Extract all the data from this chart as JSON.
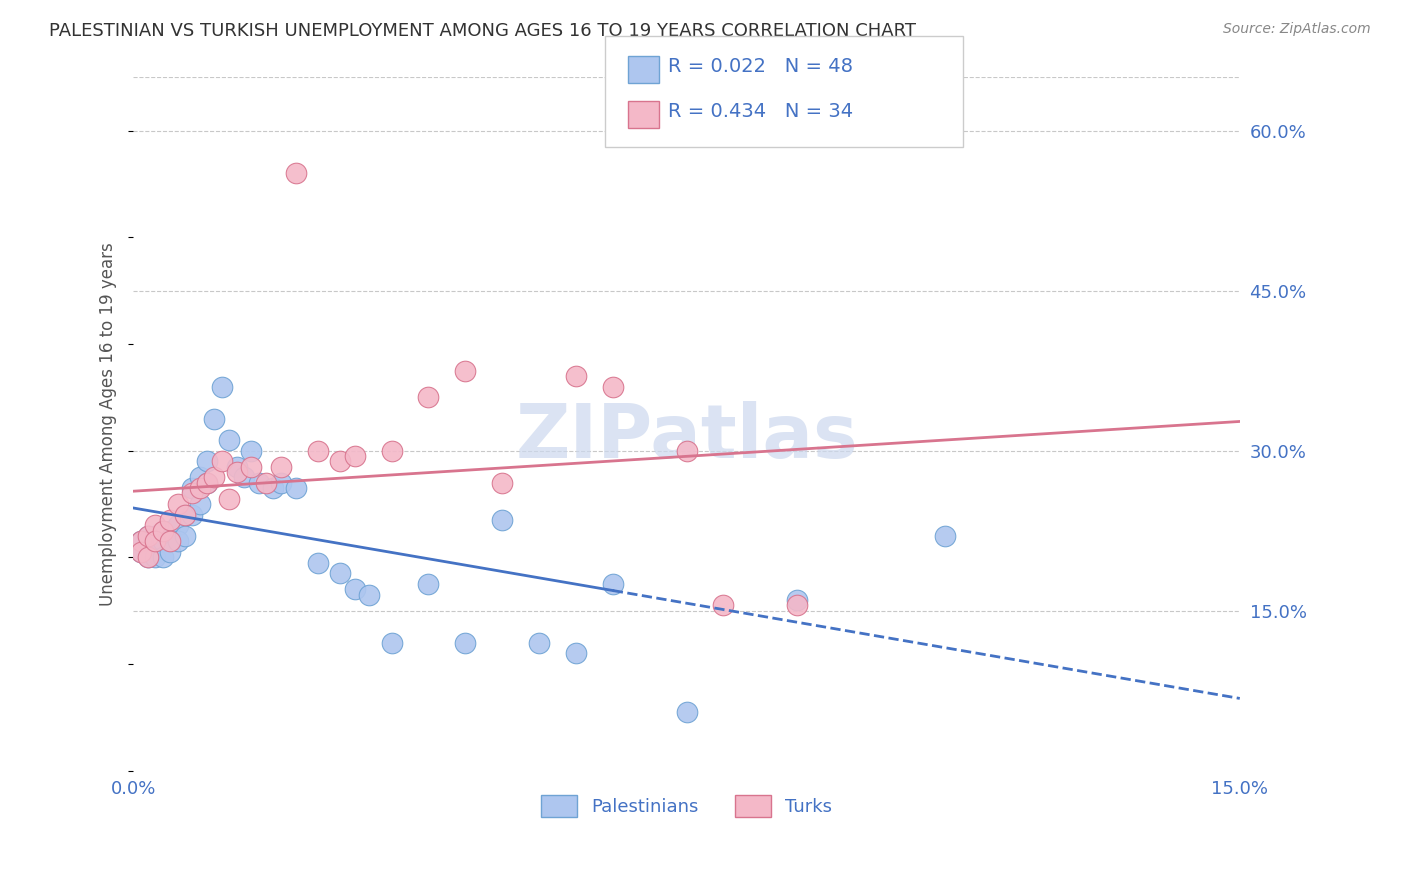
{
  "title": "PALESTINIAN VS TURKISH UNEMPLOYMENT AMONG AGES 16 TO 19 YEARS CORRELATION CHART",
  "source": "Source: ZipAtlas.com",
  "ylabel": "Unemployment Among Ages 16 to 19 years",
  "xmin": 0.0,
  "xmax": 0.15,
  "ymin": 0.0,
  "ymax": 0.65,
  "yticks": [
    0.15,
    0.3,
    0.45,
    0.6
  ],
  "ytick_labels": [
    "15.0%",
    "30.0%",
    "45.0%",
    "60.0%"
  ],
  "xticks": [
    0.0,
    0.15
  ],
  "background_color": "#ffffff",
  "grid_color": "#c8c8c8",
  "pal_color": "#aec6ef",
  "pal_edge": "#6fa3d4",
  "pal_line_color": "#4472c4",
  "turk_color": "#f4b8c8",
  "turk_edge": "#d8748e",
  "turk_line_color": "#d8748e",
  "legend_text_color": "#4472c4",
  "tick_color": "#4472c4",
  "title_color": "#333333",
  "source_color": "#888888",
  "ylabel_color": "#555555",
  "watermark_color": "#ccd8ee",
  "palestinians_x": [
    0.001,
    0.001,
    0.002,
    0.002,
    0.002,
    0.003,
    0.003,
    0.003,
    0.004,
    0.004,
    0.004,
    0.005,
    0.005,
    0.005,
    0.006,
    0.006,
    0.007,
    0.007,
    0.008,
    0.008,
    0.009,
    0.009,
    0.01,
    0.01,
    0.011,
    0.012,
    0.013,
    0.014,
    0.015,
    0.016,
    0.017,
    0.019,
    0.02,
    0.022,
    0.025,
    0.028,
    0.03,
    0.032,
    0.035,
    0.04,
    0.045,
    0.05,
    0.055,
    0.06,
    0.065,
    0.075,
    0.09,
    0.11
  ],
  "palestinians_y": [
    0.215,
    0.205,
    0.22,
    0.2,
    0.215,
    0.22,
    0.2,
    0.215,
    0.225,
    0.215,
    0.2,
    0.225,
    0.215,
    0.205,
    0.23,
    0.215,
    0.24,
    0.22,
    0.265,
    0.24,
    0.275,
    0.25,
    0.29,
    0.27,
    0.33,
    0.36,
    0.31,
    0.285,
    0.275,
    0.3,
    0.27,
    0.265,
    0.27,
    0.265,
    0.195,
    0.185,
    0.17,
    0.165,
    0.12,
    0.175,
    0.12,
    0.235,
    0.12,
    0.11,
    0.175,
    0.055,
    0.16,
    0.22
  ],
  "turks_x": [
    0.001,
    0.001,
    0.002,
    0.002,
    0.003,
    0.003,
    0.004,
    0.005,
    0.005,
    0.006,
    0.007,
    0.008,
    0.009,
    0.01,
    0.011,
    0.012,
    0.013,
    0.014,
    0.016,
    0.018,
    0.02,
    0.022,
    0.025,
    0.028,
    0.03,
    0.035,
    0.04,
    0.045,
    0.05,
    0.06,
    0.065,
    0.075,
    0.08,
    0.09
  ],
  "turks_y": [
    0.215,
    0.205,
    0.22,
    0.2,
    0.23,
    0.215,
    0.225,
    0.235,
    0.215,
    0.25,
    0.24,
    0.26,
    0.265,
    0.27,
    0.275,
    0.29,
    0.255,
    0.28,
    0.285,
    0.27,
    0.285,
    0.56,
    0.3,
    0.29,
    0.295,
    0.3,
    0.35,
    0.375,
    0.27,
    0.37,
    0.36,
    0.3,
    0.155,
    0.155
  ],
  "pal_line_solid_end": 0.065,
  "pal_line_intercept": 0.218,
  "pal_line_slope": 0.22,
  "turk_line_intercept": 0.105,
  "turk_line_slope": 3.8
}
